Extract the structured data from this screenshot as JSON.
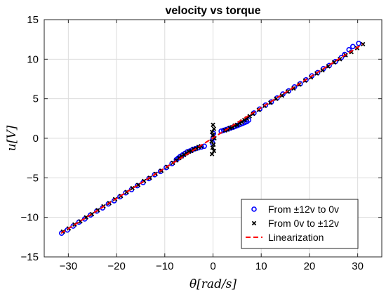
{
  "chart_data": {
    "type": "scatter",
    "title": "velocity vs torque",
    "xlabel": "θ̇[rad/s]",
    "ylabel": "u[V]",
    "xlim": [
      -35,
      35
    ],
    "ylim": [
      -15,
      15
    ],
    "xticks": [
      -30,
      -20,
      -10,
      0,
      10,
      20,
      30
    ],
    "yticks": [
      -15,
      -10,
      -5,
      0,
      5,
      10,
      15
    ],
    "grid": true,
    "legend_position": "bottom-right",
    "series": [
      {
        "name": "From ±12v to 0v",
        "marker": "circle",
        "color": "#0000ff",
        "x": [
          -31.4,
          -30.2,
          -29.0,
          -27.8,
          -26.6,
          -25.4,
          -24.1,
          -22.9,
          -21.7,
          -20.5,
          -19.3,
          -18.1,
          -16.9,
          -15.7,
          -14.5,
          -13.3,
          -12.1,
          -10.9,
          -9.7,
          -8.5,
          -7.6,
          -7.2,
          -6.8,
          -6.3,
          -5.8,
          -5.3,
          -4.8,
          -4.2,
          -3.6,
          -3.0,
          -2.4,
          -1.8,
          -0.1,
          0.0,
          0.1,
          1.7,
          2.2,
          2.7,
          3.2,
          3.7,
          4.2,
          4.6,
          5.0,
          5.4,
          5.8,
          6.2,
          6.6,
          7.0,
          7.4,
          8.5,
          9.7,
          10.9,
          12.1,
          13.3,
          14.5,
          15.7,
          16.9,
          18.1,
          19.3,
          20.5,
          21.7,
          22.9,
          24.1,
          25.4,
          26.6,
          27.3,
          28.2,
          29.0,
          30.2
        ],
        "y": [
          -12.0,
          -11.6,
          -11.1,
          -10.6,
          -10.2,
          -9.7,
          -9.2,
          -8.8,
          -8.3,
          -7.9,
          -7.4,
          -6.9,
          -6.5,
          -6.0,
          -5.6,
          -5.1,
          -4.6,
          -4.2,
          -3.7,
          -3.2,
          -2.7,
          -2.5,
          -2.3,
          -2.1,
          -1.9,
          -1.7,
          -1.6,
          -1.4,
          -1.3,
          -1.2,
          -1.1,
          -1.0,
          -0.6,
          0.0,
          0.6,
          0.9,
          1.0,
          1.1,
          1.2,
          1.3,
          1.4,
          1.5,
          1.6,
          1.7,
          1.8,
          1.9,
          2.0,
          2.1,
          2.3,
          3.2,
          3.7,
          4.2,
          4.6,
          5.1,
          5.6,
          6.0,
          6.5,
          6.9,
          7.4,
          7.9,
          8.3,
          8.8,
          9.2,
          9.7,
          10.2,
          10.6,
          11.2,
          11.6,
          12.0
        ]
      },
      {
        "name": "From 0v to ±12v",
        "marker": "cross",
        "color": "#000000",
        "x": [
          -31.1,
          -29.9,
          -28.7,
          -27.5,
          -26.3,
          -25.1,
          -23.9,
          -22.7,
          -21.5,
          -20.3,
          -19.1,
          -17.9,
          -16.7,
          -15.5,
          -14.3,
          -13.1,
          -11.9,
          -10.7,
          -9.5,
          -8.3,
          -7.6,
          -7.0,
          -6.5,
          -6.0,
          -5.5,
          -5.0,
          -4.5,
          -4.0,
          -3.5,
          -3.0,
          -2.5,
          -0.2,
          0.2,
          -0.1,
          0.1,
          -0.3,
          0.3,
          0.0,
          -0.2,
          0.2,
          0.0,
          2.5,
          3.0,
          3.5,
          4.0,
          4.5,
          5.0,
          5.5,
          6.0,
          6.5,
          7.0,
          7.6,
          8.3,
          9.5,
          10.7,
          11.9,
          13.1,
          14.3,
          15.5,
          16.7,
          17.9,
          19.1,
          20.3,
          21.5,
          22.7,
          23.9,
          25.1,
          26.3,
          27.5,
          28.7,
          29.9,
          31.1
        ],
        "y": [
          -11.8,
          -11.4,
          -10.9,
          -10.5,
          -10.0,
          -9.6,
          -9.1,
          -8.6,
          -8.2,
          -7.7,
          -7.3,
          -6.8,
          -6.3,
          -5.9,
          -5.4,
          -5.0,
          -4.5,
          -4.1,
          -3.6,
          -3.1,
          -2.8,
          -2.5,
          -2.3,
          -2.1,
          -1.9,
          -1.7,
          -1.6,
          -1.4,
          -1.3,
          -1.1,
          -1.0,
          -2.0,
          -1.6,
          -1.2,
          -0.8,
          -0.4,
          0.0,
          0.4,
          0.8,
          1.2,
          1.7,
          1.0,
          1.1,
          1.3,
          1.4,
          1.6,
          1.7,
          1.9,
          2.1,
          2.3,
          2.5,
          2.8,
          3.1,
          3.6,
          4.1,
          4.5,
          5.0,
          5.4,
          5.9,
          6.3,
          6.8,
          7.3,
          7.7,
          8.2,
          8.6,
          9.1,
          9.6,
          10.0,
          10.5,
          10.9,
          11.4,
          11.9
        ]
      },
      {
        "name": "Linearization",
        "type": "line",
        "style": "dashed",
        "color": "#ff0000",
        "x": [
          -31.5,
          31.0
        ],
        "y": [
          -12.0,
          11.9
        ]
      }
    ]
  }
}
